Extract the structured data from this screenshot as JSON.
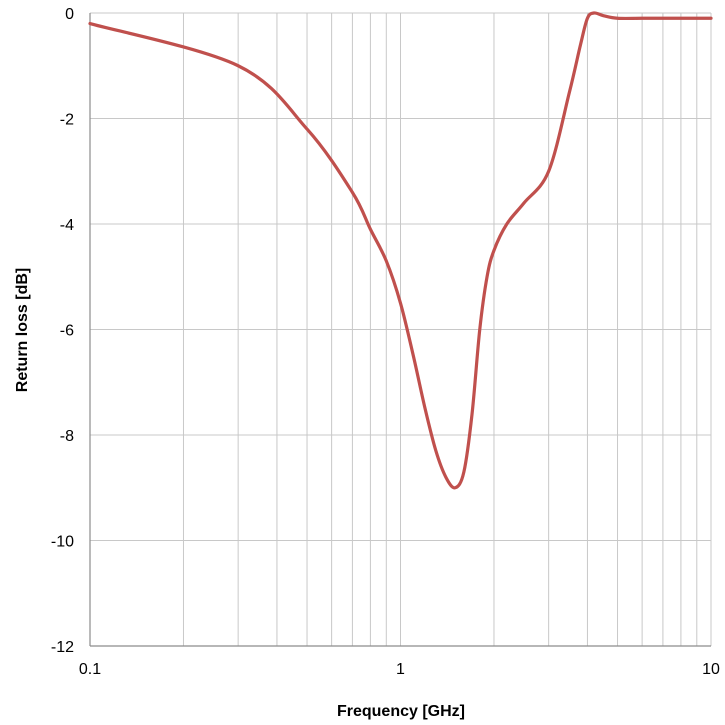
{
  "chart_data": {
    "type": "line",
    "title": "",
    "xlabel": "Frequency [GHz]",
    "ylabel": "Return loss [dB]",
    "x_scale": "log",
    "xlim": [
      0.1,
      10
    ],
    "ylim": [
      -12,
      0
    ],
    "x_ticks": [
      {
        "value": 0.1,
        "label": "0.1"
      },
      {
        "value": 1,
        "label": "1"
      },
      {
        "value": 10,
        "label": "10"
      }
    ],
    "y_ticks": [
      {
        "value": 0,
        "label": "0"
      },
      {
        "value": -2,
        "label": "-2"
      },
      {
        "value": -4,
        "label": "-4"
      },
      {
        "value": -6,
        "label": "-6"
      },
      {
        "value": -8,
        "label": "-8"
      },
      {
        "value": -10,
        "label": "-10"
      },
      {
        "value": -12,
        "label": "-12"
      }
    ],
    "grid": true,
    "legend": "none",
    "series": [
      {
        "color": "#c0504d",
        "x": [
          0.1,
          0.3,
          0.5,
          0.7,
          0.8,
          0.9,
          1.0,
          1.1,
          1.2,
          1.3,
          1.4,
          1.5,
          1.6,
          1.7,
          1.8,
          1.9,
          2.0,
          2.2,
          2.5,
          3.0,
          3.5,
          3.8,
          4.0,
          4.2,
          4.5,
          5.0,
          6.0,
          7.0,
          8.0,
          9.0,
          10.0
        ],
        "y": [
          -0.2,
          -1.0,
          -2.2,
          -3.4,
          -4.1,
          -4.7,
          -5.5,
          -6.5,
          -7.5,
          -8.3,
          -8.8,
          -9.0,
          -8.7,
          -7.6,
          -6.0,
          -5.0,
          -4.5,
          -4.0,
          -3.6,
          -3.0,
          -1.5,
          -0.6,
          -0.1,
          0.0,
          -0.05,
          -0.1,
          -0.1,
          -0.1,
          -0.1,
          -0.1,
          -0.1
        ]
      }
    ]
  }
}
